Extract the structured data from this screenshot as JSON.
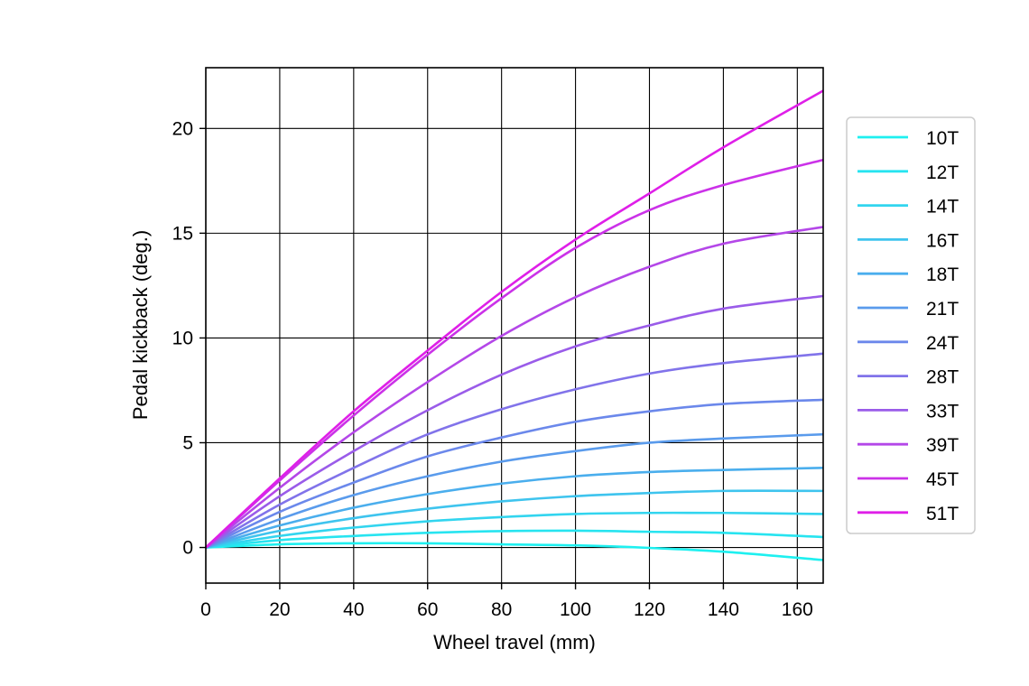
{
  "chart_data": {
    "type": "line",
    "title": "",
    "xlabel": "Wheel travel (mm)",
    "ylabel": "Pedal kickback (deg.)",
    "xlim": [
      0,
      167
    ],
    "ylim": [
      -1.7,
      22.9
    ],
    "xticks": [
      0,
      20,
      40,
      60,
      80,
      100,
      120,
      140,
      160
    ],
    "yticks": [
      0,
      5,
      10,
      15,
      20
    ],
    "grid": true,
    "legend_position": "right-outside",
    "x": [
      0,
      20,
      40,
      60,
      80,
      100,
      120,
      140,
      167
    ],
    "series": [
      {
        "name": "10T",
        "color": "#1ef0f0",
        "values": [
          0,
          0.15,
          0.2,
          0.2,
          0.15,
          0.1,
          -0.02,
          -0.2,
          -0.6
        ]
      },
      {
        "name": "12T",
        "color": "#27e4f0",
        "values": [
          0,
          0.35,
          0.55,
          0.7,
          0.78,
          0.8,
          0.75,
          0.7,
          0.5
        ]
      },
      {
        "name": "14T",
        "color": "#32d5ef",
        "values": [
          0,
          0.55,
          0.95,
          1.25,
          1.45,
          1.6,
          1.65,
          1.65,
          1.6
        ]
      },
      {
        "name": "16T",
        "color": "#3ec4ee",
        "values": [
          0,
          0.8,
          1.4,
          1.85,
          2.2,
          2.45,
          2.6,
          2.7,
          2.7
        ]
      },
      {
        "name": "18T",
        "color": "#4aaeed",
        "values": [
          0,
          1.05,
          1.9,
          2.55,
          3.05,
          3.4,
          3.6,
          3.7,
          3.8
        ]
      },
      {
        "name": "21T",
        "color": "#5a9bec",
        "values": [
          0,
          1.35,
          2.5,
          3.4,
          4.1,
          4.6,
          5.0,
          5.2,
          5.4
        ]
      },
      {
        "name": "24T",
        "color": "#6b88eb",
        "values": [
          0,
          1.7,
          3.1,
          4.35,
          5.25,
          6.0,
          6.5,
          6.85,
          7.05
        ]
      },
      {
        "name": "28T",
        "color": "#8173ea",
        "values": [
          0,
          2.05,
          3.8,
          5.4,
          6.6,
          7.55,
          8.3,
          8.8,
          9.25
        ]
      },
      {
        "name": "33T",
        "color": "#9a5ce9",
        "values": [
          0,
          2.45,
          4.6,
          6.55,
          8.25,
          9.6,
          10.6,
          11.4,
          12.0
        ]
      },
      {
        "name": "39T",
        "color": "#b447e8",
        "values": [
          0,
          2.85,
          5.5,
          7.9,
          10.1,
          11.95,
          13.4,
          14.5,
          15.3
        ]
      },
      {
        "name": "45T",
        "color": "#cb32e8",
        "values": [
          0,
          3.2,
          6.3,
          9.2,
          11.9,
          14.3,
          16.1,
          17.3,
          18.5
        ]
      },
      {
        "name": "51T",
        "color": "#df1fe8",
        "values": [
          0,
          3.3,
          6.5,
          9.4,
          12.2,
          14.7,
          16.9,
          19.1,
          21.8
        ]
      }
    ]
  }
}
